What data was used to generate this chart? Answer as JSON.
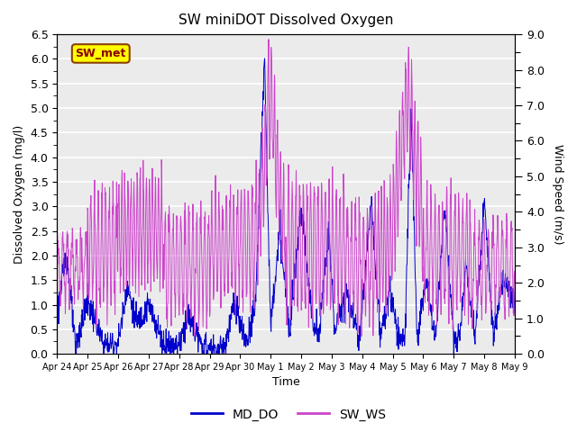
{
  "title": "SW miniDOT Dissolved Oxygen",
  "ylabel_left": "Dissolved Oxygen (mg/l)",
  "ylabel_right": "Wind Speed (m/s)",
  "xlabel": "Time",
  "ylim_left": [
    0,
    6.5
  ],
  "ylim_right": [
    0.0,
    9.0
  ],
  "yticks_left": [
    0.0,
    0.5,
    1.0,
    1.5,
    2.0,
    2.5,
    3.0,
    3.5,
    4.0,
    4.5,
    5.0,
    5.5,
    6.0,
    6.5
  ],
  "yticks_right_major": [
    0.0,
    1.0,
    2.0,
    3.0,
    4.0,
    5.0,
    6.0,
    7.0,
    8.0,
    9.0
  ],
  "yticks_right_minor": [
    0.5,
    1.5,
    2.5,
    3.5,
    4.5,
    5.5,
    6.5,
    7.5,
    8.5
  ],
  "color_DO": "#0000cc",
  "color_WS": "#cc44cc",
  "legend_label_DO": "MD_DO",
  "legend_label_WS": "SW_WS",
  "annotation_text": "SW_met",
  "annotation_color": "#8b0000",
  "annotation_bg": "#ffff00",
  "annotation_border": "#8b4000",
  "background_color": "#ebebeb",
  "grid_color": "white",
  "xtick_labels": [
    "Apr 24",
    "Apr 25",
    "Apr 26",
    "Apr 27",
    "Apr 28",
    "Apr 29",
    "Apr 30",
    "May 1",
    "May 2",
    "May 3",
    "May 4",
    "May 5",
    "May 6",
    "May 7",
    "May 8",
    "May 9"
  ]
}
